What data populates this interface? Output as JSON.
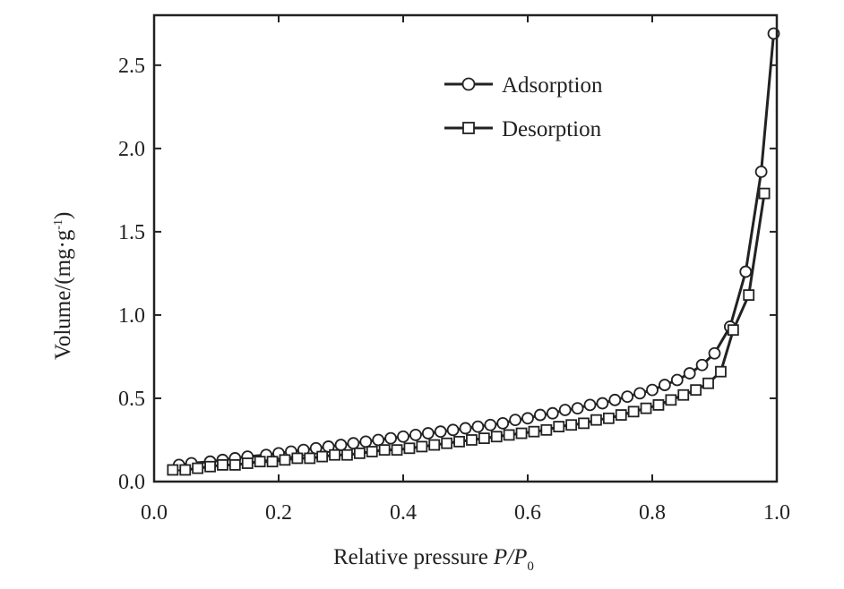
{
  "chart_data": {
    "type": "line",
    "xlabel": "Relative pressure",
    "xlabel_italic": "P/P",
    "xlabel_sub": "0",
    "ylabel": "Volume/(mg·g",
    "ylabel_sup": "-1",
    "ylabel_close": ")",
    "xlim": [
      0.0,
      1.0
    ],
    "ylim": [
      0.0,
      2.8
    ],
    "xticks": [
      "0.0",
      "0.2",
      "0.4",
      "0.6",
      "0.8",
      "1.0"
    ],
    "yticks": [
      "0.0",
      "0.5",
      "1.0",
      "1.5",
      "2.0",
      "2.5"
    ],
    "legend_position": "top-right",
    "series": [
      {
        "name": "Adsorption",
        "marker": "circle",
        "x": [
          0.04,
          0.06,
          0.09,
          0.11,
          0.13,
          0.15,
          0.18,
          0.2,
          0.22,
          0.24,
          0.26,
          0.28,
          0.3,
          0.32,
          0.34,
          0.36,
          0.38,
          0.4,
          0.42,
          0.44,
          0.46,
          0.48,
          0.5,
          0.52,
          0.54,
          0.56,
          0.58,
          0.6,
          0.62,
          0.64,
          0.66,
          0.68,
          0.7,
          0.72,
          0.74,
          0.76,
          0.78,
          0.8,
          0.82,
          0.84,
          0.86,
          0.88,
          0.9,
          0.925,
          0.95,
          0.975,
          0.995
        ],
        "y": [
          0.1,
          0.11,
          0.12,
          0.13,
          0.14,
          0.15,
          0.16,
          0.17,
          0.18,
          0.19,
          0.2,
          0.21,
          0.22,
          0.23,
          0.24,
          0.25,
          0.26,
          0.27,
          0.28,
          0.29,
          0.3,
          0.31,
          0.32,
          0.33,
          0.34,
          0.35,
          0.37,
          0.38,
          0.4,
          0.41,
          0.43,
          0.44,
          0.46,
          0.47,
          0.49,
          0.51,
          0.53,
          0.55,
          0.58,
          0.61,
          0.65,
          0.7,
          0.77,
          0.93,
          1.26,
          1.86,
          2.69
        ]
      },
      {
        "name": "Desorption",
        "marker": "square",
        "x": [
          0.03,
          0.05,
          0.07,
          0.09,
          0.11,
          0.13,
          0.15,
          0.17,
          0.19,
          0.21,
          0.23,
          0.25,
          0.27,
          0.29,
          0.31,
          0.33,
          0.35,
          0.37,
          0.39,
          0.41,
          0.43,
          0.45,
          0.47,
          0.49,
          0.51,
          0.53,
          0.55,
          0.57,
          0.59,
          0.61,
          0.63,
          0.65,
          0.67,
          0.69,
          0.71,
          0.73,
          0.75,
          0.77,
          0.79,
          0.81,
          0.83,
          0.85,
          0.87,
          0.89,
          0.91,
          0.93,
          0.955,
          0.98
        ],
        "y": [
          0.07,
          0.07,
          0.08,
          0.09,
          0.1,
          0.1,
          0.11,
          0.12,
          0.12,
          0.13,
          0.14,
          0.14,
          0.15,
          0.16,
          0.16,
          0.17,
          0.18,
          0.19,
          0.19,
          0.2,
          0.21,
          0.22,
          0.23,
          0.24,
          0.25,
          0.26,
          0.27,
          0.28,
          0.29,
          0.3,
          0.31,
          0.33,
          0.34,
          0.35,
          0.37,
          0.38,
          0.4,
          0.42,
          0.44,
          0.46,
          0.49,
          0.52,
          0.55,
          0.59,
          0.66,
          0.91,
          1.12,
          1.73
        ]
      }
    ]
  }
}
